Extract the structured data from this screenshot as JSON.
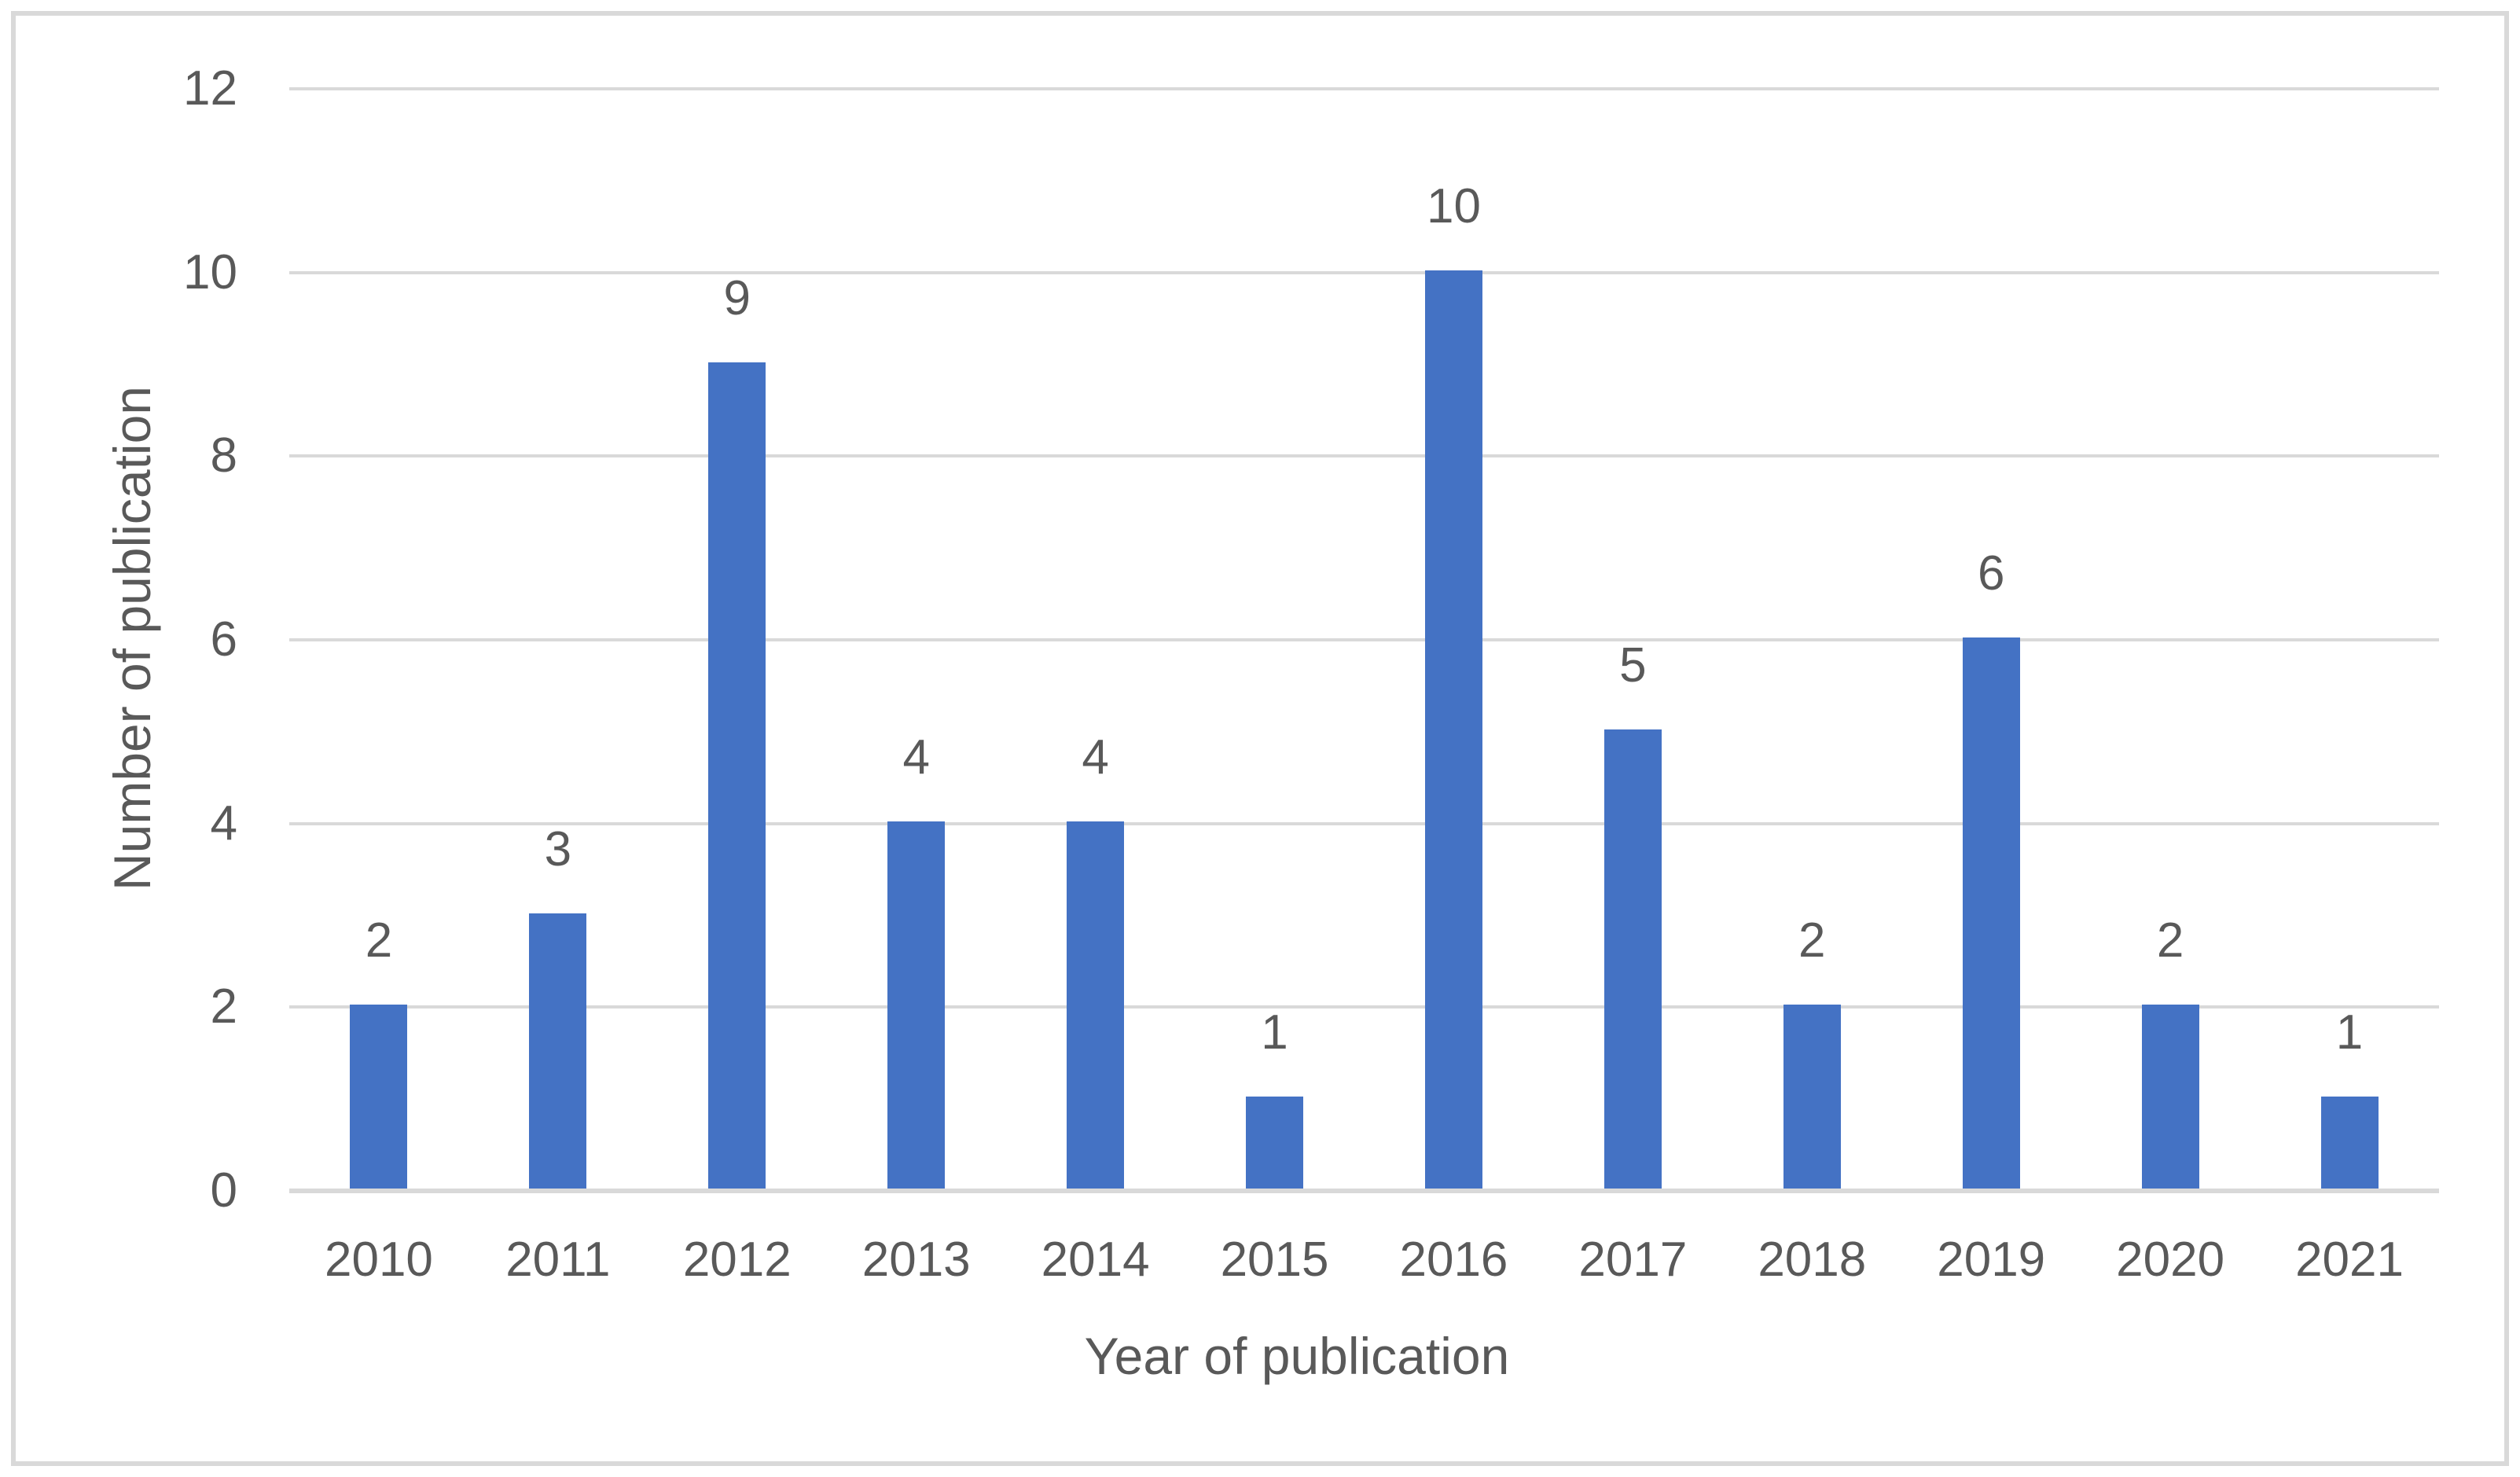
{
  "chart_data": {
    "type": "bar",
    "xlabel": "Year of publication",
    "ylabel": "Number of publication",
    "categories": [
      "2010",
      "2011",
      "2012",
      "2013",
      "2014",
      "2015",
      "2016",
      "2017",
      "2018",
      "2019",
      "2020",
      "2021"
    ],
    "values": [
      2,
      3,
      9,
      4,
      4,
      1,
      10,
      5,
      2,
      6,
      2,
      1
    ],
    "yticks": [
      0,
      2,
      4,
      6,
      8,
      10,
      12
    ],
    "ylim": [
      0,
      12
    ],
    "grid": "horizontal",
    "legend": "none",
    "data_labels": true,
    "bar_color": "#4472C4",
    "gridline_color": "#D9D9D9",
    "border_color": "#D9D9D9",
    "text_color": "#595959"
  }
}
